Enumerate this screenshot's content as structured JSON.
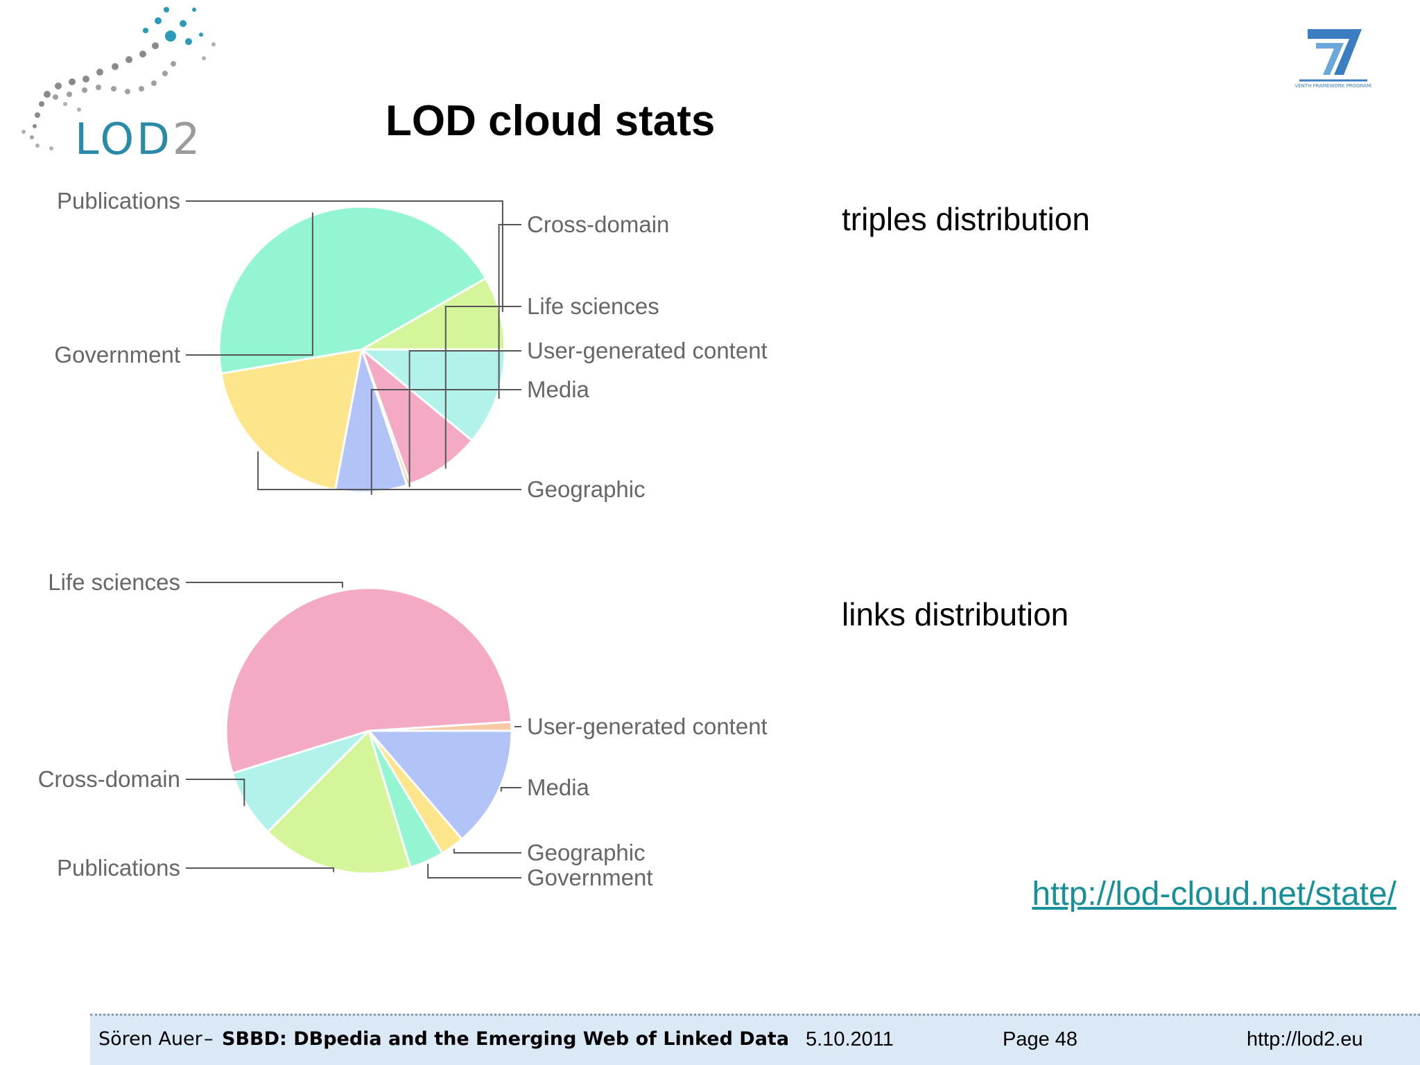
{
  "slide": {
    "title": "LOD cloud stats",
    "source_link": "http://lod-cloud.net/state/"
  },
  "logos": {
    "left": {
      "text": "LOD2",
      "icon": "lod2-logo-icon",
      "colors": [
        "#2a8ba8",
        "#9a9a9a"
      ]
    },
    "right": {
      "text": "SEVENTH FRAMEWORK PROGRAMME",
      "icon": "fp7-logo-icon",
      "colors": [
        "#3a7dc0"
      ]
    }
  },
  "footer": {
    "author": "Sören Auer",
    "separator": "–",
    "talk": "SBBD: DBpedia and the Emerging Web of Linked Data",
    "date": "5.10.2011",
    "page": "Page 48",
    "site": "http://lod2.eu"
  },
  "chart_data": [
    {
      "type": "pie",
      "caption": "triples distribution",
      "slices": [
        {
          "label": "Cross-domain",
          "value": 11.0,
          "color": "#b1f2ea"
        },
        {
          "label": "Life sciences",
          "value": 8.5,
          "color": "#f4aac4"
        },
        {
          "label": "User-generated content",
          "value": 0.4,
          "color": "#f7c9a4"
        },
        {
          "label": "Media",
          "value": 8.1,
          "color": "#b1c3f7"
        },
        {
          "label": "Geographic",
          "value": 19.3,
          "color": "#fce58a"
        },
        {
          "label": "Government",
          "value": 44.4,
          "color": "#94f5d3"
        },
        {
          "label": "Publications",
          "value": 8.3,
          "color": "#d5f59a"
        }
      ]
    },
    {
      "type": "pie",
      "caption": "links distribution",
      "slices": [
        {
          "label": "User-generated content",
          "value": 1.0,
          "color": "#f7c9a4"
        },
        {
          "label": "Media",
          "value": 13.7,
          "color": "#b1c3f7"
        },
        {
          "label": "Geographic",
          "value": 2.7,
          "color": "#fce58a"
        },
        {
          "label": "Government",
          "value": 3.9,
          "color": "#94f5d3"
        },
        {
          "label": "Publications",
          "value": 17.2,
          "color": "#d5f59a"
        },
        {
          "label": "Cross-domain",
          "value": 7.7,
          "color": "#b1f2ea"
        },
        {
          "label": "Life sciences",
          "value": 53.8,
          "color": "#f4aac4"
        }
      ]
    }
  ]
}
